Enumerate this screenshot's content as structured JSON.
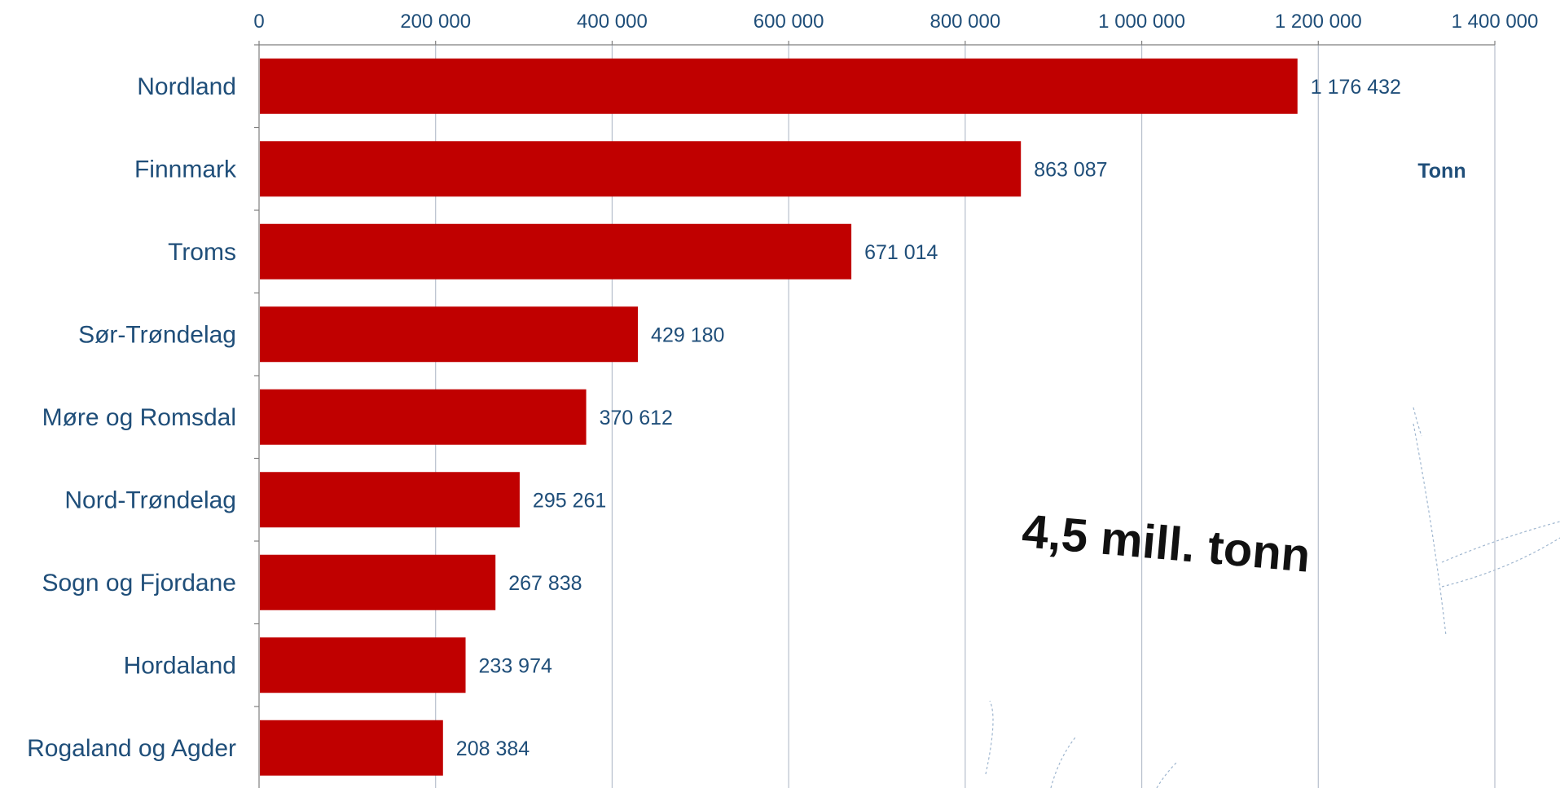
{
  "chart_data": {
    "type": "bar",
    "orientation": "horizontal",
    "categories": [
      "Nordland",
      "Finnmark",
      "Troms",
      "Sør-Trøndelag",
      "Møre og Romsdal",
      "Nord-Trøndelag",
      "Sogn og Fjordane",
      "Hordaland",
      "Rogaland og Agder"
    ],
    "values": [
      1176432,
      863087,
      671014,
      429180,
      370612,
      295261,
      267838,
      233974,
      208384
    ],
    "value_labels": [
      "1 176 432",
      "863 087",
      "671 014",
      "429 180",
      "370 612",
      "295 261",
      "267 838",
      "233 974",
      "208 384"
    ],
    "xlim": [
      0,
      1400000
    ],
    "x_ticks": [
      0,
      200000,
      400000,
      600000,
      800000,
      1000000,
      1200000,
      1400000
    ],
    "x_tick_labels": [
      "0",
      "200 000",
      "400 000",
      "600 000",
      "800 000",
      "1 000 000",
      "1 200 000",
      "1 400 000"
    ],
    "x_axis_position": "top",
    "unit_label": "Tonn",
    "annotation": "4,5 mill. tonn",
    "grid": true,
    "bar_color": "#c00000",
    "text_color": "#1f4e79",
    "grid_color": "#b7bfcc"
  }
}
